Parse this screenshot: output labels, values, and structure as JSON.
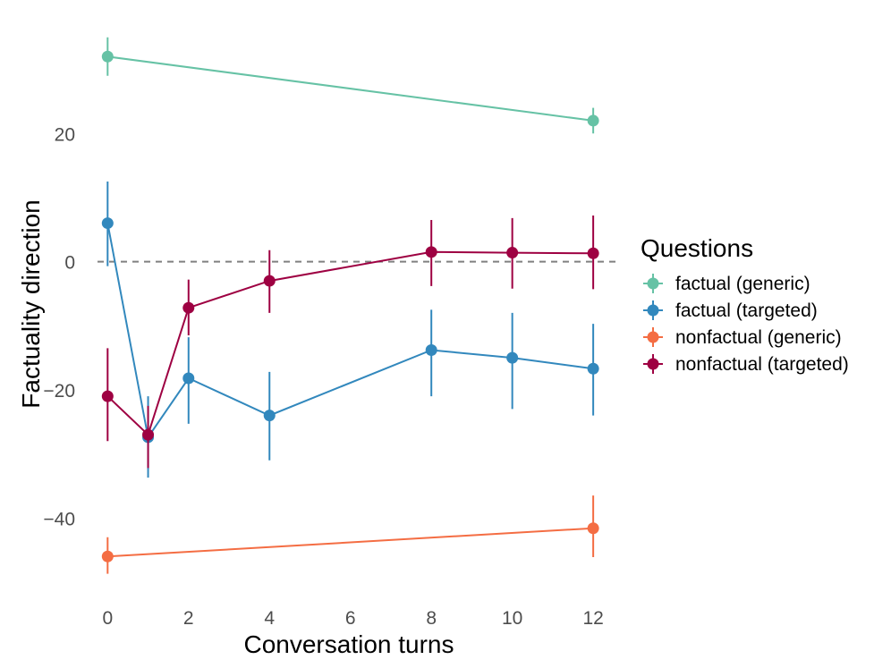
{
  "chart_data": {
    "type": "line",
    "title": "",
    "xlabel": "Conversation turns",
    "ylabel": "Factuality direction",
    "x_ticks": [
      0,
      2,
      4,
      6,
      8,
      10,
      12
    ],
    "y_ticks": [
      -40,
      -20,
      0,
      20
    ],
    "xlim": [
      -0.25,
      12.55
    ],
    "ylim": [
      -52.8,
      36.5
    ],
    "reference_line": {
      "y": 0,
      "style": "dashed",
      "color": "#808080"
    },
    "grid": false,
    "legend": {
      "title": "Questions",
      "position": "right"
    },
    "series": [
      {
        "name": "factual (generic)",
        "color": "#66C2A5",
        "points": [
          {
            "x": 0,
            "y": 32.0,
            "lo": 29.0,
            "hi": 35.0
          },
          {
            "x": 12,
            "y": 22.0,
            "lo": 20.0,
            "hi": 24.0
          }
        ]
      },
      {
        "name": "factual (targeted)",
        "color": "#3288BD",
        "points": [
          {
            "x": 0,
            "y": 6.0,
            "lo": -0.7,
            "hi": 12.5
          },
          {
            "x": 1,
            "y": -27.4,
            "lo": -33.7,
            "hi": -21.0
          },
          {
            "x": 2,
            "y": -18.2,
            "lo": -25.3,
            "hi": -11.8
          },
          {
            "x": 4,
            "y": -24.0,
            "lo": -31.0,
            "hi": -17.2
          },
          {
            "x": 8,
            "y": -13.8,
            "lo": -21.0,
            "hi": -7.5
          },
          {
            "x": 10,
            "y": -15.0,
            "lo": -23.0,
            "hi": -8.0
          },
          {
            "x": 12,
            "y": -16.7,
            "lo": -24.0,
            "hi": -9.7
          }
        ]
      },
      {
        "name": "nonfactual (generic)",
        "color": "#F46D43",
        "points": [
          {
            "x": 0,
            "y": -46.0,
            "lo": -48.7,
            "hi": -43.0
          },
          {
            "x": 12,
            "y": -41.6,
            "lo": -46.1,
            "hi": -36.5
          }
        ]
      },
      {
        "name": "nonfactual (targeted)",
        "color": "#9E0142",
        "points": [
          {
            "x": 0,
            "y": -21.0,
            "lo": -28.0,
            "hi": -13.5
          },
          {
            "x": 1,
            "y": -27.0,
            "lo": -32.2,
            "hi": -22.5
          },
          {
            "x": 2,
            "y": -7.2,
            "lo": -11.5,
            "hi": -2.8
          },
          {
            "x": 4,
            "y": -3.0,
            "lo": -8.0,
            "hi": 1.8
          },
          {
            "x": 8,
            "y": 1.5,
            "lo": -3.8,
            "hi": 6.5
          },
          {
            "x": 10,
            "y": 1.4,
            "lo": -4.2,
            "hi": 6.8
          },
          {
            "x": 12,
            "y": 1.3,
            "lo": -4.3,
            "hi": 7.2
          }
        ]
      }
    ]
  }
}
